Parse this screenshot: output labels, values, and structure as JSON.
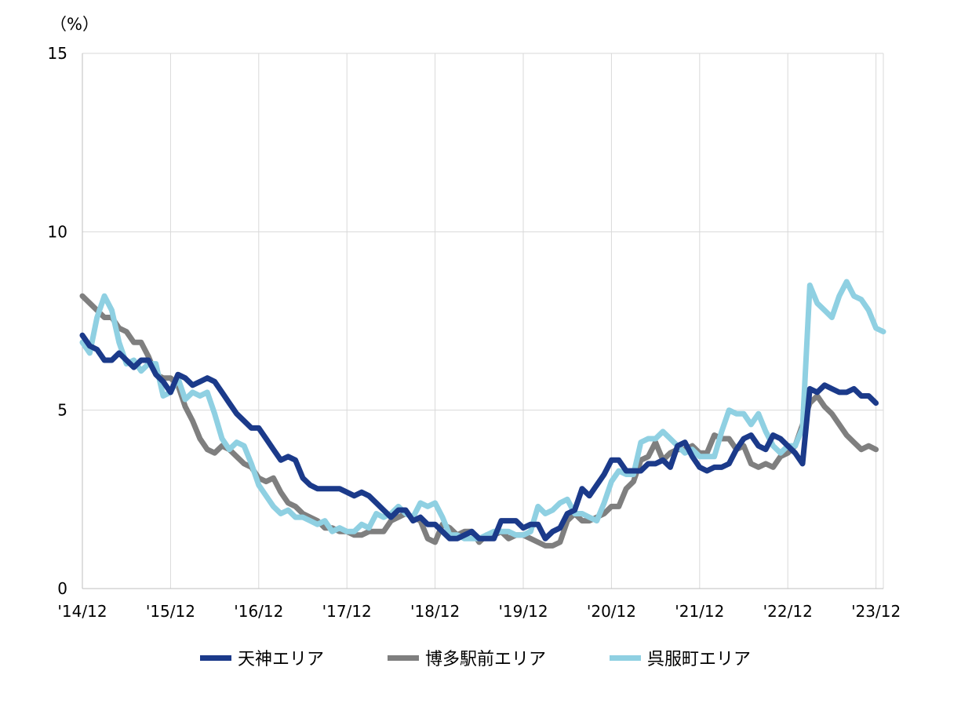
{
  "chart_data": {
    "type": "line",
    "title": "",
    "xlabel": "",
    "ylabel": "",
    "unit_label": "（%）",
    "ylim": [
      0,
      15
    ],
    "yticks": [
      "0",
      "5",
      "10",
      "15"
    ],
    "xlim": [
      0,
      109
    ],
    "xtick_labels": [
      "'14/12",
      "'15/12",
      "'16/12",
      "'17/12",
      "'18/12",
      "'19/12",
      "'20/12",
      "'21/12",
      "'22/12",
      "'23/12"
    ],
    "x_unit": "months since 2014/12",
    "grid": true,
    "legend_position": "bottom",
    "series": [
      {
        "name": "天神エリア",
        "color": "#1b3a8a",
        "values": [
          7.1,
          6.8,
          6.7,
          6.4,
          6.4,
          6.6,
          6.4,
          6.2,
          6.4,
          6.4,
          6.0,
          5.8,
          5.5,
          6.0,
          5.9,
          5.7,
          5.8,
          5.9,
          5.8,
          5.5,
          5.2,
          4.9,
          4.7,
          4.5,
          4.5,
          4.2,
          3.9,
          3.6,
          3.7,
          3.6,
          3.1,
          2.9,
          2.8,
          2.8,
          2.8,
          2.8,
          2.7,
          2.6,
          2.7,
          2.6,
          2.4,
          2.2,
          2.0,
          2.2,
          2.2,
          1.9,
          2.0,
          1.8,
          1.8,
          1.6,
          1.4,
          1.4,
          1.5,
          1.6,
          1.4,
          1.4,
          1.4,
          1.9,
          1.9,
          1.9,
          1.7,
          1.8,
          1.8,
          1.4,
          1.6,
          1.7,
          2.1,
          2.2,
          2.8,
          2.6,
          2.9,
          3.2,
          3.6,
          3.6,
          3.3,
          3.3,
          3.3,
          3.5,
          3.5,
          3.6,
          3.4,
          4.0,
          4.1,
          3.7,
          3.4,
          3.3,
          3.4,
          3.4,
          3.5,
          3.9,
          4.2,
          4.3,
          4.0,
          3.9,
          4.3,
          4.2,
          4.0,
          3.8,
          3.5,
          5.6,
          5.5,
          5.7,
          5.6,
          5.5,
          5.5,
          5.6,
          5.4,
          5.4,
          5.2
        ]
      },
      {
        "name": "博多駅前エリア",
        "color": "#7f7f7f",
        "values": [
          8.2,
          8.0,
          7.8,
          7.6,
          7.6,
          7.3,
          7.2,
          6.9,
          6.9,
          6.5,
          6.0,
          5.9,
          5.9,
          5.7,
          5.1,
          4.7,
          4.2,
          3.9,
          3.8,
          4.0,
          3.9,
          3.7,
          3.5,
          3.4,
          3.1,
          3.0,
          3.1,
          2.7,
          2.4,
          2.3,
          2.1,
          2.0,
          1.9,
          1.7,
          1.7,
          1.6,
          1.6,
          1.5,
          1.5,
          1.6,
          1.6,
          1.6,
          1.9,
          2.0,
          2.1,
          2.0,
          1.9,
          1.4,
          1.3,
          1.8,
          1.7,
          1.5,
          1.6,
          1.6,
          1.3,
          1.5,
          1.5,
          1.6,
          1.4,
          1.5,
          1.5,
          1.4,
          1.3,
          1.2,
          1.2,
          1.3,
          1.9,
          2.1,
          1.9,
          1.9,
          2.0,
          2.1,
          2.3,
          2.3,
          2.8,
          3.0,
          3.6,
          3.7,
          4.1,
          3.6,
          3.8,
          3.9,
          3.9,
          4.0,
          3.8,
          3.8,
          4.3,
          4.2,
          4.2,
          3.9,
          4.0,
          3.5,
          3.4,
          3.5,
          3.4,
          3.7,
          3.8,
          4.0,
          4.6,
          5.2,
          5.4,
          5.1,
          4.9,
          4.6,
          4.3,
          4.1,
          3.9,
          4.0,
          3.9
        ]
      },
      {
        "name": "呉服町エリア",
        "color": "#8fd0e2",
        "values": [
          6.9,
          6.6,
          7.6,
          8.2,
          7.8,
          6.9,
          6.3,
          6.4,
          6.1,
          6.3,
          6.3,
          5.4,
          5.5,
          5.9,
          5.3,
          5.5,
          5.4,
          5.5,
          4.9,
          4.2,
          3.9,
          4.1,
          4.0,
          3.5,
          2.9,
          2.6,
          2.3,
          2.1,
          2.2,
          2.0,
          2.0,
          1.9,
          1.8,
          1.9,
          1.6,
          1.7,
          1.6,
          1.6,
          1.8,
          1.7,
          2.1,
          2.0,
          2.1,
          2.3,
          2.1,
          2.0,
          2.4,
          2.3,
          2.4,
          2.0,
          1.5,
          1.5,
          1.4,
          1.4,
          1.4,
          1.5,
          1.6,
          1.6,
          1.6,
          1.5,
          1.5,
          1.6,
          2.3,
          2.1,
          2.2,
          2.4,
          2.5,
          2.1,
          2.1,
          2.0,
          1.9,
          2.4,
          3.0,
          3.3,
          3.2,
          3.2,
          4.1,
          4.2,
          4.2,
          4.4,
          4.2,
          4.0,
          3.8,
          3.9,
          3.7,
          3.7,
          3.7,
          4.4,
          5.0,
          4.9,
          4.9,
          4.6,
          4.9,
          4.4,
          4.0,
          3.8,
          4.0,
          4.0,
          4.5,
          8.5,
          8.0,
          7.8,
          7.6,
          8.2,
          8.6,
          8.2,
          8.1,
          7.8,
          7.3,
          7.2
        ]
      }
    ]
  }
}
